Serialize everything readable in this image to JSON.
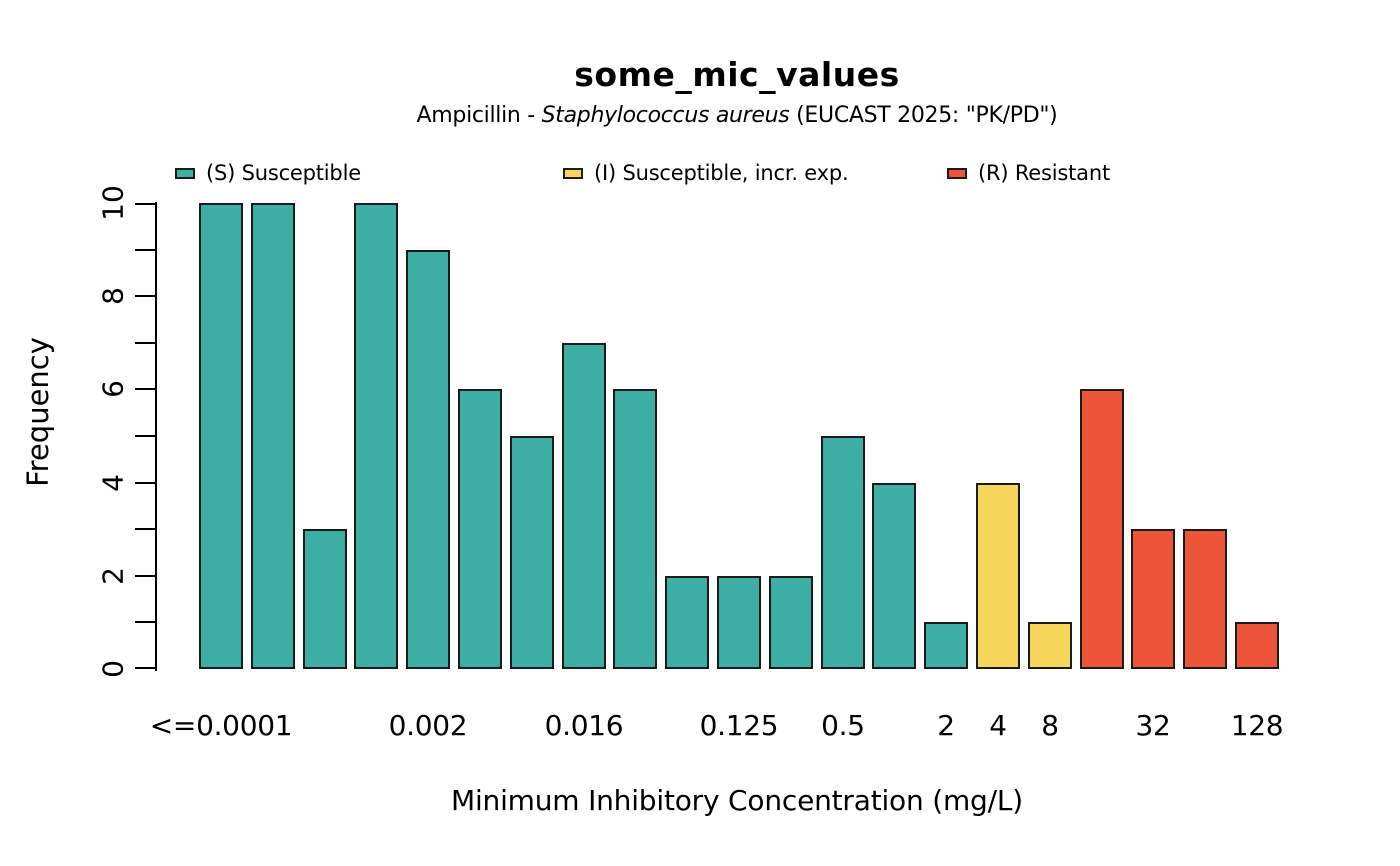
{
  "chart_data": {
    "type": "bar",
    "title": "some_mic_values",
    "subtitle_prefix": "Ampicillin - ",
    "subtitle_italic": "Staphylococcus aureus",
    "subtitle_suffix": " (EUCAST 2025: \"PK/PD\")",
    "xlabel": "Minimum Inhibitory Concentration (mg/L)",
    "ylabel": "Frequency",
    "ylim": [
      0,
      10
    ],
    "y_major_ticks": [
      0,
      2,
      4,
      6,
      8,
      10
    ],
    "y_minor_tick_step": 1,
    "grid": false,
    "legend_position": "top",
    "sir_colors": {
      "S": "#3CAEA3",
      "I": "#F6D55C",
      "R": "#ED553B"
    },
    "legend": [
      {
        "sir": "S",
        "label": "(S) Susceptible"
      },
      {
        "sir": "I",
        "label": "(I) Susceptible, incr. exp."
      },
      {
        "sir": "R",
        "label": "(R) Resistant"
      }
    ],
    "bars": [
      {
        "value": 10,
        "sir": "S"
      },
      {
        "value": 10,
        "sir": "S"
      },
      {
        "value": 3,
        "sir": "S"
      },
      {
        "value": 10,
        "sir": "S"
      },
      {
        "value": 9,
        "sir": "S"
      },
      {
        "value": 6,
        "sir": "S"
      },
      {
        "value": 5,
        "sir": "S"
      },
      {
        "value": 7,
        "sir": "S"
      },
      {
        "value": 6,
        "sir": "S"
      },
      {
        "value": 2,
        "sir": "S"
      },
      {
        "value": 2,
        "sir": "S"
      },
      {
        "value": 2,
        "sir": "S"
      },
      {
        "value": 5,
        "sir": "S"
      },
      {
        "value": 4,
        "sir": "S"
      },
      {
        "value": 1,
        "sir": "S"
      },
      {
        "value": 4,
        "sir": "I"
      },
      {
        "value": 1,
        "sir": "I"
      },
      {
        "value": 6,
        "sir": "R"
      },
      {
        "value": 3,
        "sir": "R"
      },
      {
        "value": 3,
        "sir": "R"
      },
      {
        "value": 1,
        "sir": "R"
      }
    ],
    "x_tick_labels": [
      {
        "bar_index": 0,
        "label": "<=0.0001"
      },
      {
        "bar_index": 4,
        "label": "0.002"
      },
      {
        "bar_index": 7,
        "label": "0.016"
      },
      {
        "bar_index": 10,
        "label": "0.125"
      },
      {
        "bar_index": 12,
        "label": "0.5"
      },
      {
        "bar_index": 14,
        "label": "2"
      },
      {
        "bar_index": 15,
        "label": "4"
      },
      {
        "bar_index": 16,
        "label": "8"
      },
      {
        "bar_index": 18,
        "label": "32"
      },
      {
        "bar_index": 20,
        "label": "128"
      }
    ]
  }
}
